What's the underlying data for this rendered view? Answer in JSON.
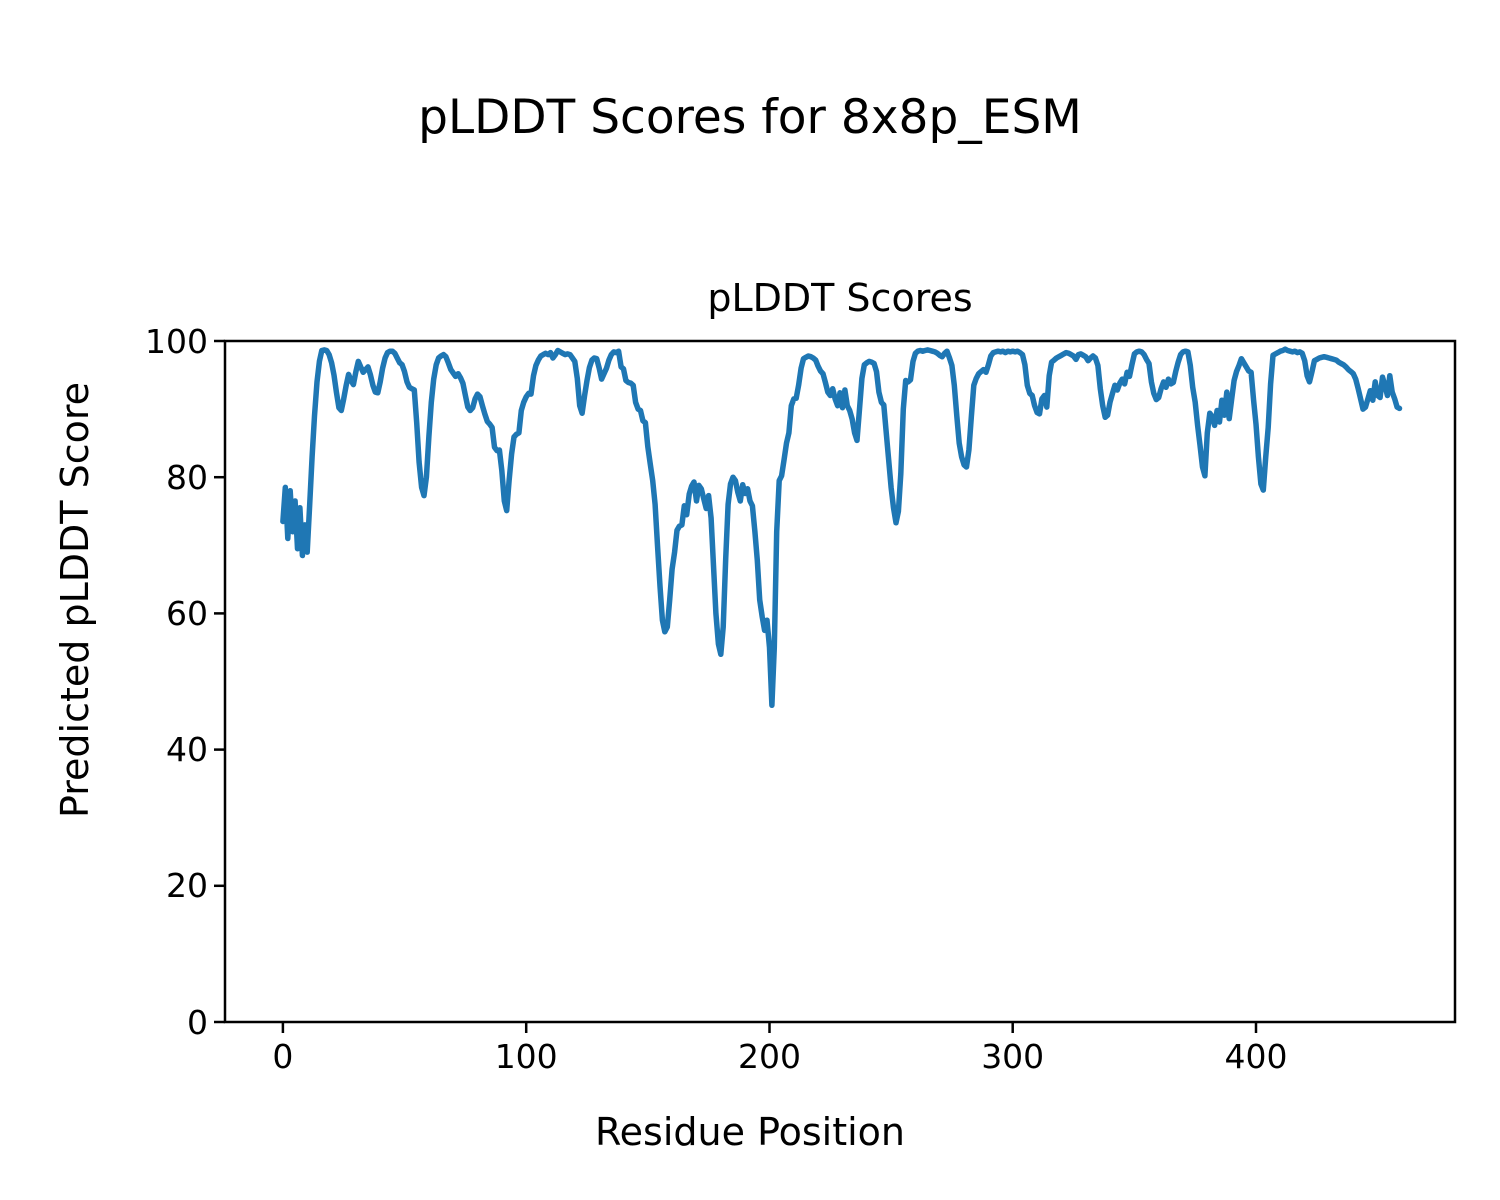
{
  "figure": {
    "background": "#ffffff",
    "text_color": "#000000",
    "suptitle": "pLDDT Scores for 8x8p_ESM"
  },
  "chart_data": {
    "type": "line",
    "title": "pLDDT Scores",
    "xlabel": "Residue Position",
    "ylabel": "Predicted pLDDT Score",
    "xlim": [
      -23.8,
      481.8
    ],
    "ylim": [
      0,
      100
    ],
    "xticks": [
      0,
      100,
      200,
      300,
      400
    ],
    "yticks": [
      0,
      20,
      40,
      60,
      80,
      100
    ],
    "grid": false,
    "legend_position": "none",
    "line_color": "#1f77b4",
    "series": [
      {
        "name": "pLDDT",
        "x_start": 0,
        "x_step": 1,
        "values": [
          73.5,
          78.5,
          71,
          78,
          72,
          76.5,
          69.5,
          75.5,
          68.5,
          73,
          69,
          76,
          83,
          89,
          94,
          97,
          98.6,
          98.7,
          98.6,
          98,
          96.8,
          95,
          92.5,
          90.2,
          89.8,
          91.5,
          93.5,
          95.1,
          94.2,
          93.6,
          95.5,
          97,
          96.2,
          95.4,
          95.8,
          96.2,
          95,
          93.5,
          92.5,
          92.4,
          94,
          96,
          97.5,
          98.3,
          98.5,
          98.5,
          98.2,
          97.5,
          96.8,
          96.5,
          95.5,
          94,
          93.2,
          93,
          92.8,
          88,
          82.2,
          78.5,
          77.3,
          80,
          86,
          91,
          94.4,
          96.5,
          97.5,
          97.8,
          98,
          97.7,
          96.8,
          95.8,
          95.3,
          94.8,
          95.2,
          94.6,
          93.8,
          92,
          90.3,
          89.8,
          90.2,
          91.5,
          92.2,
          91.8,
          90.5,
          89.3,
          88.2,
          87.8,
          87.3,
          84.4,
          83.9,
          84,
          81,
          76.5,
          75.1,
          79.5,
          83.4,
          85.9,
          86.3,
          86.5,
          89.8,
          91,
          91.8,
          92.3,
          92.2,
          94.9,
          96.4,
          97.2,
          97.8,
          98,
          98.2,
          98,
          98.3,
          97.5,
          98,
          98.6,
          98.4,
          98.2,
          98,
          98.1,
          98,
          97.5,
          97,
          94.5,
          90.5,
          89.4,
          92,
          94.2,
          96.1,
          97.2,
          97.5,
          97.4,
          96,
          94.4,
          95.2,
          96,
          97.2,
          98,
          98.4,
          98.3,
          98.5,
          96.2,
          95.9,
          94.2,
          93.9,
          93.8,
          93.5,
          91,
          90,
          89.8,
          88.3,
          88,
          84.5,
          82,
          79.5,
          76,
          70,
          64,
          59,
          57.3,
          58,
          62,
          66.5,
          69,
          72.2,
          72.8,
          73,
          75.8,
          74.5,
          77.5,
          78.7,
          79.3,
          76.5,
          78.8,
          78.3,
          76.8,
          75.4,
          77.3,
          74,
          67,
          60,
          55.5,
          54,
          58,
          68,
          76,
          79,
          80,
          79.5,
          77.8,
          76.5,
          78.9,
          77.6,
          78.3,
          76.5,
          75.8,
          72,
          67.8,
          62,
          59.5,
          57.5,
          59,
          55,
          46.5,
          55,
          72,
          79.5,
          80.2,
          82.5,
          85,
          86.5,
          90.5,
          91.5,
          91.6,
          93.5,
          96,
          97.4,
          97.6,
          97.8,
          97.7,
          97.5,
          97.2,
          96.3,
          95.6,
          95.2,
          93.9,
          92.5,
          92,
          93,
          91.5,
          90.5,
          92.4,
          90.2,
          92.8,
          90.5,
          89.8,
          88.5,
          86.5,
          85.4,
          90,
          94.5,
          96.5,
          96.8,
          97,
          96.9,
          96.7,
          95.5,
          92.5,
          91,
          90.6,
          86.6,
          82.5,
          78.5,
          75.5,
          73.3,
          75,
          80.5,
          90,
          94.2,
          94,
          94.3,
          97,
          98.2,
          98.5,
          98.6,
          98.5,
          98.6,
          98.7,
          98.6,
          98.5,
          98.4,
          98.2,
          97.9,
          97.7,
          98.2,
          98.5,
          97.5,
          96.4,
          93.5,
          89,
          85,
          83,
          81.8,
          81.5,
          84,
          89,
          93.5,
          94.5,
          95.2,
          95.5,
          95.8,
          95.4,
          96.5,
          97.8,
          98.3,
          98.4,
          98.5,
          98.4,
          98.5,
          98.3,
          98.5,
          98.4,
          98.5,
          98.4,
          98.5,
          98.3,
          98,
          96.5,
          93.5,
          92.3,
          92,
          90.5,
          89.5,
          89.3,
          91.5,
          92,
          90.3,
          94.9,
          96.9,
          97.2,
          97.5,
          97.7,
          97.9,
          98.1,
          98.3,
          98.2,
          98,
          97.8,
          97.3,
          98,
          98.1,
          97.9,
          97.7,
          97.1,
          97.5,
          97.8,
          97.5,
          96.4,
          93,
          90.5,
          88.8,
          89.1,
          91,
          92.3,
          93.5,
          92.8,
          93.8,
          94.4,
          93.7,
          95.4,
          94.8,
          96.5,
          98.1,
          98.4,
          98.5,
          98.4,
          98,
          97.3,
          96.7,
          94,
          92.3,
          91.4,
          91.7,
          93,
          94,
          93.2,
          94.4,
          93.7,
          93.9,
          95.5,
          96.9,
          98,
          98.4,
          98.5,
          98.4,
          96.4,
          93.2,
          91,
          87.6,
          84.7,
          81.5,
          80.2,
          86.5,
          89.4,
          88.9,
          87.6,
          89.8,
          88.1,
          91.3,
          89.1,
          92.5,
          88.6,
          91.5,
          94.2,
          95.5,
          96.4,
          97.4,
          96.8,
          96.2,
          95.6,
          95.4,
          91.3,
          87.8,
          83,
          79,
          78.1,
          82.9,
          87.3,
          93.7,
          97.9,
          98.1,
          98.3,
          98.5,
          98.6,
          98.8,
          98.6,
          98.5,
          98.4,
          98.5,
          98.3,
          98.4,
          98.2,
          97.1,
          94.9,
          94,
          95.5,
          97.1,
          97.3,
          97.5,
          97.6,
          97.7,
          97.6,
          97.5,
          97.4,
          97.3,
          97.2,
          96.9,
          96.7,
          96.5,
          96.2,
          95.8,
          95.5,
          95.2,
          94.4,
          93,
          91.5,
          90,
          90.3,
          91.5,
          92.7,
          91.3,
          94,
          92,
          91.7,
          94.7,
          93.5,
          92,
          94.9,
          92.5,
          91.5,
          90.3,
          90.1
        ]
      }
    ]
  }
}
